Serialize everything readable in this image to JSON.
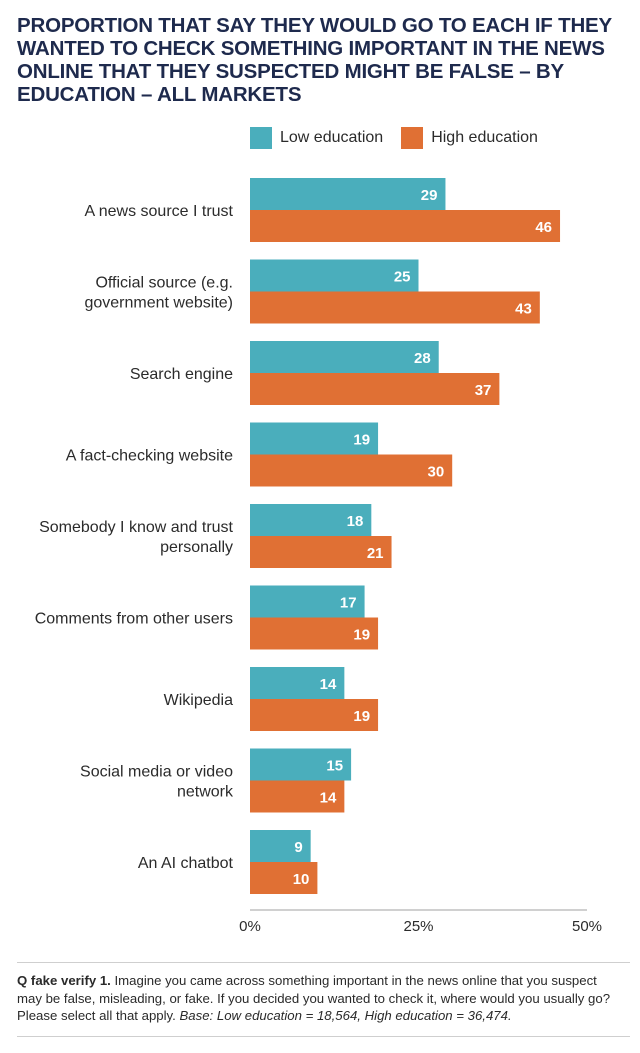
{
  "chart_data": {
    "type": "bar",
    "orientation": "horizontal",
    "title": "PROPORTION THAT SAY THEY WOULD GO TO EACH IF THEY WANTED TO CHECK SOMETHING IMPORTANT IN THE NEWS ONLINE THAT THEY SUSPECTED MIGHT BE FALSE – BY EDUCATION – ALL MARKETS",
    "categories": [
      [
        "A news source I trust"
      ],
      [
        "Official source (e.g.",
        "government website)"
      ],
      [
        "Search engine"
      ],
      [
        "A fact-checking website"
      ],
      [
        "Somebody I know and trust",
        "personally"
      ],
      [
        "Comments from other users"
      ],
      [
        "Wikipedia"
      ],
      [
        "Social media or video",
        "network"
      ],
      [
        "An AI chatbot"
      ]
    ],
    "series": [
      {
        "name": "Low education",
        "color": "#4aaebc",
        "values": [
          29,
          25,
          28,
          19,
          18,
          17,
          14,
          15,
          9
        ]
      },
      {
        "name": "High education",
        "color": "#e07034",
        "values": [
          46,
          43,
          37,
          30,
          21,
          19,
          19,
          14,
          10
        ]
      }
    ],
    "xlim": [
      0,
      50
    ],
    "xticks": [
      "0%",
      "25%",
      "50%"
    ],
    "xtick_values": [
      0,
      25,
      50
    ],
    "legend_position": "top",
    "grid": false
  },
  "footer": {
    "question_label": "Q fake verify 1.",
    "question_text": " Imagine you came across something important in the news online that you suspect may be false, misleading, or fake. If you decided you wanted to check it, where would you usually go? Please select all that apply. ",
    "base_text": "Base: Low education = 18,564, High education = 36,474."
  }
}
